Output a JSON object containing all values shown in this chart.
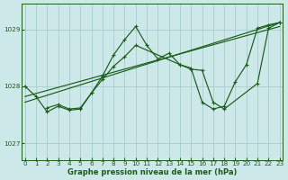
{
  "xlabel": "Graphe pression niveau de la mer (hPa)",
  "ylim": [
    1026.7,
    1029.45
  ],
  "xlim": [
    -0.3,
    23.3
  ],
  "yticks": [
    1027,
    1028,
    1029
  ],
  "xticks": [
    0,
    1,
    2,
    3,
    4,
    5,
    6,
    7,
    8,
    9,
    10,
    11,
    12,
    13,
    14,
    15,
    16,
    17,
    18,
    19,
    20,
    21,
    22,
    23
  ],
  "bg_color": "#cce8e8",
  "grid_color": "#aacccc",
  "line_color": "#1a5c1a",
  "line1_x": [
    0,
    1,
    2,
    3,
    4,
    5,
    6,
    7,
    8,
    9,
    10,
    11,
    12,
    13,
    14,
    15,
    16,
    17,
    18,
    19,
    20,
    21,
    22,
    23
  ],
  "line1_y": [
    1028.0,
    1027.82,
    1027.55,
    1027.65,
    1027.58,
    1027.6,
    1027.88,
    1028.18,
    1028.55,
    1028.82,
    1029.05,
    1028.72,
    1028.48,
    1028.58,
    1028.38,
    1028.32,
    1027.72,
    1027.6,
    1027.65,
    1028.08,
    1028.38,
    1029.02,
    1029.08,
    1029.12
  ],
  "line2_x": [
    2,
    3,
    4,
    5,
    6,
    7,
    8,
    9,
    10,
    14,
    15,
    16,
    17,
    18,
    21,
    22,
    23
  ],
  "line2_y": [
    1027.62,
    1027.68,
    1027.6,
    1027.62,
    1027.88,
    1028.12,
    1028.35,
    1028.52,
    1028.72,
    1028.38,
    1028.3,
    1028.28,
    1027.72,
    1027.6,
    1028.05,
    1029.02,
    1029.12
  ],
  "trend1_x": [
    0,
    23
  ],
  "trend1_y": [
    1027.72,
    1029.12
  ],
  "trend2_x": [
    0,
    23
  ],
  "trend2_y": [
    1027.82,
    1029.05
  ],
  "xlabel_fontsize": 6.0,
  "tick_fontsize": 5.2
}
